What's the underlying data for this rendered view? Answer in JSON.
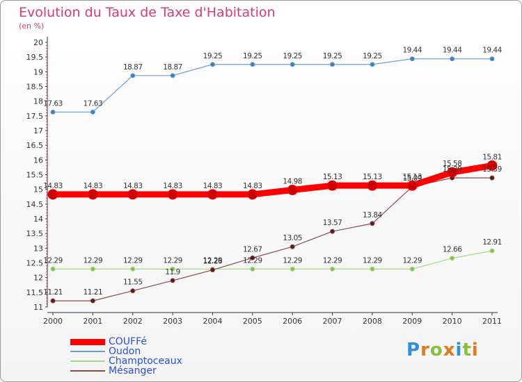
{
  "title": "Evolution du Taux de Taxe d'Habitation",
  "subtitle": "(en %)",
  "logo": {
    "letters": [
      "P",
      "r",
      "o",
      "x",
      "i",
      "t",
      "i"
    ],
    "colors": [
      "#2f8fd8",
      "#e07a1f",
      "#8bbf3a",
      "#e07a1f",
      "#2f8fd8",
      "#8bbf3a",
      "#e07a1f"
    ]
  },
  "chart_data": {
    "type": "line",
    "x": [
      "2000",
      "2001",
      "2002",
      "2003",
      "2004",
      "2005",
      "2006",
      "2007",
      "2008",
      "2009",
      "2010",
      "2011"
    ],
    "ylim": [
      11,
      20
    ],
    "yticks": [
      "11",
      "11.5",
      "12",
      "12.5",
      "13",
      "13.5",
      "14",
      "14.5",
      "15",
      "15.5",
      "16",
      "16.5",
      "17",
      "17.5",
      "18",
      "18.5",
      "19",
      "19.5",
      "20"
    ],
    "grid": false,
    "legend_position": "bottom-left",
    "series": [
      {
        "name": "COUFFé",
        "color": "#ff0000",
        "marker": "#cc0000",
        "width": 9,
        "radius": 7,
        "values": [
          14.83,
          14.83,
          14.83,
          14.83,
          14.83,
          14.83,
          14.98,
          15.13,
          15.13,
          15.13,
          15.58,
          15.81
        ],
        "labels": [
          "14.83",
          "14.83",
          "14.83",
          "14.83",
          "14.83",
          "14.83",
          "14.98",
          "15.13",
          "15.13",
          "15.13",
          "15.58",
          "15.81"
        ]
      },
      {
        "name": "Oudon",
        "color": "#6a9fd4",
        "marker": "#3f7fbf",
        "width": 1.2,
        "radius": 3,
        "values": [
          17.63,
          17.63,
          18.87,
          18.87,
          19.25,
          19.25,
          19.25,
          19.25,
          19.25,
          19.44,
          19.44,
          19.44
        ],
        "labels": [
          "17.63",
          "17.63",
          "18.87",
          "18.87",
          "19.25",
          "19.25",
          "19.25",
          "19.25",
          "19.25",
          "19.44",
          "19.44",
          "19.44"
        ]
      },
      {
        "name": "Champtoceaux",
        "color": "#a8d880",
        "marker": "#7cc44a",
        "width": 1.2,
        "radius": 3,
        "values": [
          12.29,
          12.29,
          12.29,
          12.29,
          12.29,
          12.29,
          12.29,
          12.29,
          12.29,
          12.29,
          12.66,
          12.91
        ],
        "labels": [
          "12.29",
          "12.29",
          "12.29",
          "12.29",
          "12.29",
          "12.29",
          "12.29",
          "12.29",
          "12.29",
          "12.29",
          "12.66",
          "12.91"
        ]
      },
      {
        "name": "Mésanger",
        "color": "#8a4a4a",
        "marker": "#5a1a1a",
        "width": 1.2,
        "radius": 3,
        "values": [
          11.21,
          11.21,
          11.55,
          11.9,
          12.26,
          12.67,
          13.05,
          13.57,
          13.84,
          15.09,
          15.39,
          15.39
        ],
        "labels": [
          "11.21",
          "11.21",
          "11.55",
          "11.9",
          "12.26",
          "12.67",
          "13.05",
          "13.57",
          "13.84",
          "15.09",
          "15.39",
          "15.39"
        ]
      }
    ]
  }
}
